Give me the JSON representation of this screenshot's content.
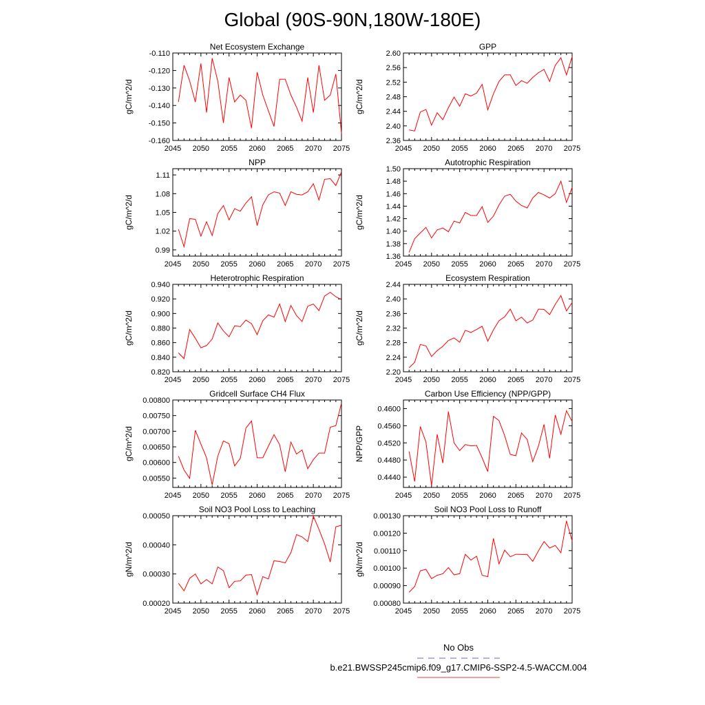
{
  "title": "Global (90S-90N,180W-180E)",
  "legend": {
    "entries": [
      {
        "label": "No Obs",
        "color": "#6666cc",
        "dash": true
      },
      {
        "label": "b.e21.BWSSP245cmip6.f09_g17.CMIP6-SSP2-4.5-WACCM.004",
        "color": "#e04040",
        "dash": false
      }
    ]
  },
  "colors": {
    "series": "#ff0000",
    "axes": "#000000"
  },
  "chart_data": [
    {
      "type": "line",
      "title": "Net Ecosystem Exchange",
      "ylabel": "gC/m^2/d",
      "xlim": [
        2045,
        2075
      ],
      "ylim": [
        -0.16,
        -0.11
      ],
      "xticks": [
        2045,
        2050,
        2055,
        2060,
        2065,
        2070,
        2075
      ],
      "yticks": [
        "-0.160",
        "-0.150",
        "-0.140",
        "-0.130",
        "-0.120",
        "-0.110"
      ],
      "x": [
        2046,
        2047,
        2048,
        2049,
        2050,
        2051,
        2052,
        2053,
        2054,
        2055,
        2056,
        2057,
        2058,
        2059,
        2060,
        2061,
        2062,
        2063,
        2064,
        2065,
        2066,
        2067,
        2068,
        2069,
        2070,
        2071,
        2072,
        2073,
        2074,
        2075
      ],
      "values": [
        -0.138,
        -0.117,
        -0.126,
        -0.138,
        -0.116,
        -0.144,
        -0.113,
        -0.126,
        -0.15,
        -0.124,
        -0.138,
        -0.134,
        -0.137,
        -0.153,
        -0.121,
        -0.134,
        -0.143,
        -0.152,
        -0.125,
        -0.125,
        -0.134,
        -0.141,
        -0.149,
        -0.124,
        -0.144,
        -0.117,
        -0.137,
        -0.134,
        -0.122,
        -0.156
      ]
    },
    {
      "type": "line",
      "title": "GPP",
      "ylabel": "gC/m^2/d",
      "xlim": [
        2045,
        2075
      ],
      "ylim": [
        2.36,
        2.6
      ],
      "xticks": [
        2045,
        2050,
        2055,
        2060,
        2065,
        2070,
        2075
      ],
      "yticks": [
        "2.36",
        "2.40",
        "2.44",
        "2.48",
        "2.52",
        "2.56",
        "2.60"
      ],
      "x": [
        2046,
        2047,
        2048,
        2049,
        2050,
        2051,
        2052,
        2053,
        2054,
        2055,
        2056,
        2057,
        2058,
        2059,
        2060,
        2061,
        2062,
        2063,
        2064,
        2065,
        2066,
        2067,
        2068,
        2069,
        2070,
        2071,
        2072,
        2073,
        2074,
        2075
      ],
      "values": [
        2.389,
        2.386,
        2.438,
        2.445,
        2.402,
        2.436,
        2.417,
        2.45,
        2.479,
        2.454,
        2.488,
        2.482,
        2.49,
        2.514,
        2.444,
        2.488,
        2.522,
        2.54,
        2.54,
        2.511,
        2.524,
        2.517,
        2.533,
        2.546,
        2.555,
        2.522,
        2.566,
        2.587,
        2.54,
        2.59
      ]
    },
    {
      "type": "line",
      "title": "NPP",
      "ylabel": "gC/m^2/d",
      "xlim": [
        2045,
        2075
      ],
      "ylim": [
        0.98,
        1.12
      ],
      "xticks": [
        2045,
        2050,
        2055,
        2060,
        2065,
        2070,
        2075
      ],
      "yticks": [
        "0.99",
        "1.02",
        "1.05",
        "1.08",
        "1.11"
      ],
      "x": [
        2046,
        2047,
        2048,
        2049,
        2050,
        2051,
        2052,
        2053,
        2054,
        2055,
        2056,
        2057,
        2058,
        2059,
        2060,
        2061,
        2062,
        2063,
        2064,
        2065,
        2066,
        2067,
        2068,
        2069,
        2070,
        2071,
        2072,
        2073,
        2074,
        2075
      ],
      "values": [
        1.023,
        0.995,
        1.04,
        1.039,
        1.012,
        1.035,
        1.013,
        1.048,
        1.061,
        1.038,
        1.056,
        1.052,
        1.065,
        1.075,
        1.029,
        1.062,
        1.078,
        1.083,
        1.081,
        1.061,
        1.083,
        1.079,
        1.078,
        1.083,
        1.096,
        1.07,
        1.103,
        1.104,
        1.093,
        1.115
      ]
    },
    {
      "type": "line",
      "title": "Autotrophic Respiration",
      "ylabel": "gC/m^2/d",
      "xlim": [
        2045,
        2075
      ],
      "ylim": [
        1.36,
        1.5
      ],
      "xticks": [
        2045,
        2050,
        2055,
        2060,
        2065,
        2070,
        2075
      ],
      "yticks": [
        "1.36",
        "1.38",
        "1.40",
        "1.42",
        "1.44",
        "1.46",
        "1.48",
        "1.50"
      ],
      "x": [
        2046,
        2047,
        2048,
        2049,
        2050,
        2051,
        2052,
        2053,
        2054,
        2055,
        2056,
        2057,
        2058,
        2059,
        2060,
        2061,
        2062,
        2063,
        2064,
        2065,
        2066,
        2067,
        2068,
        2069,
        2070,
        2071,
        2072,
        2073,
        2074,
        2075
      ],
      "values": [
        1.366,
        1.388,
        1.397,
        1.406,
        1.389,
        1.402,
        1.405,
        1.399,
        1.416,
        1.413,
        1.43,
        1.425,
        1.425,
        1.439,
        1.414,
        1.424,
        1.442,
        1.456,
        1.459,
        1.448,
        1.441,
        1.437,
        1.453,
        1.462,
        1.458,
        1.453,
        1.46,
        1.48,
        1.446,
        1.47
      ]
    },
    {
      "type": "line",
      "title": "Heterotrophic Respiration",
      "ylabel": "gC/m^2/d",
      "xlim": [
        2045,
        2075
      ],
      "ylim": [
        0.82,
        0.94
      ],
      "xticks": [
        2045,
        2050,
        2055,
        2060,
        2065,
        2070,
        2075
      ],
      "yticks": [
        "0.820",
        "0.840",
        "0.860",
        "0.880",
        "0.900",
        "0.920",
        "0.940"
      ],
      "x": [
        2046,
        2047,
        2048,
        2049,
        2050,
        2051,
        2052,
        2053,
        2054,
        2055,
        2056,
        2057,
        2058,
        2059,
        2060,
        2061,
        2062,
        2063,
        2064,
        2065,
        2066,
        2067,
        2068,
        2069,
        2070,
        2071,
        2072,
        2073,
        2074,
        2075
      ],
      "values": [
        0.846,
        0.838,
        0.878,
        0.866,
        0.853,
        0.856,
        0.865,
        0.887,
        0.876,
        0.868,
        0.883,
        0.882,
        0.891,
        0.886,
        0.871,
        0.89,
        0.898,
        0.895,
        0.913,
        0.889,
        0.911,
        0.897,
        0.889,
        0.91,
        0.913,
        0.904,
        0.924,
        0.929,
        0.923,
        0.919
      ]
    },
    {
      "type": "line",
      "title": "Ecosystem Respiration",
      "ylabel": "gC/m^2/d",
      "xlim": [
        2045,
        2075
      ],
      "ylim": [
        2.2,
        2.44
      ],
      "xticks": [
        2045,
        2050,
        2055,
        2060,
        2065,
        2070,
        2075
      ],
      "yticks": [
        "2.20",
        "2.24",
        "2.28",
        "2.32",
        "2.36",
        "2.40",
        "2.44"
      ],
      "x": [
        2046,
        2047,
        2048,
        2049,
        2050,
        2051,
        2052,
        2053,
        2054,
        2055,
        2056,
        2057,
        2058,
        2059,
        2060,
        2061,
        2062,
        2063,
        2064,
        2065,
        2066,
        2067,
        2068,
        2069,
        2070,
        2071,
        2072,
        2073,
        2074,
        2075
      ],
      "values": [
        2.211,
        2.226,
        2.275,
        2.271,
        2.242,
        2.258,
        2.27,
        2.286,
        2.293,
        2.281,
        2.314,
        2.308,
        2.316,
        2.325,
        2.284,
        2.315,
        2.34,
        2.351,
        2.372,
        2.34,
        2.35,
        2.334,
        2.342,
        2.372,
        2.371,
        2.357,
        2.385,
        2.409,
        2.367,
        2.39
      ]
    },
    {
      "type": "line",
      "title": "Gridcell Surface CH4 Flux",
      "ylabel": "gC/m^2/d",
      "xlim": [
        2045,
        2075
      ],
      "ylim": [
        0.0052,
        0.008
      ],
      "xticks": [
        2045,
        2050,
        2055,
        2060,
        2065,
        2070,
        2075
      ],
      "yticks": [
        "0.00550",
        "0.00600",
        "0.00650",
        "0.00700",
        "0.00750",
        "0.00800"
      ],
      "x": [
        2046,
        2047,
        2048,
        2049,
        2050,
        2051,
        2052,
        2053,
        2054,
        2055,
        2056,
        2057,
        2058,
        2059,
        2060,
        2061,
        2062,
        2063,
        2064,
        2065,
        2066,
        2067,
        2068,
        2069,
        2070,
        2071,
        2072,
        2073,
        2074,
        2075
      ],
      "values": [
        0.0062,
        0.00576,
        0.00549,
        0.00703,
        0.00659,
        0.00615,
        0.00528,
        0.0062,
        0.00669,
        0.0066,
        0.00589,
        0.00613,
        0.0071,
        0.00733,
        0.00615,
        0.00615,
        0.00652,
        0.00689,
        0.00657,
        0.0057,
        0.00665,
        0.00627,
        0.0064,
        0.0058,
        0.00609,
        0.0063,
        0.0063,
        0.00713,
        0.00718,
        0.0079
      ]
    },
    {
      "type": "line",
      "title": "Carbon Use Efficiency (NPP/GPP)",
      "ylabel": "NPP/GPP",
      "xlim": [
        2045,
        2075
      ],
      "ylim": [
        0.4416,
        0.462
      ],
      "xticks": [
        2045,
        2050,
        2055,
        2060,
        2065,
        2070,
        2075
      ],
      "yticks": [
        "0.4440",
        "0.4480",
        "0.4520",
        "0.4560",
        "0.4600"
      ],
      "x": [
        2046,
        2047,
        2048,
        2049,
        2050,
        2051,
        2052,
        2053,
        2054,
        2055,
        2056,
        2057,
        2058,
        2059,
        2060,
        2061,
        2062,
        2063,
        2064,
        2065,
        2066,
        2067,
        2068,
        2069,
        2070,
        2071,
        2072,
        2073,
        2074,
        2075
      ],
      "values": [
        0.45,
        0.443,
        0.4558,
        0.4522,
        0.442,
        0.454,
        0.4473,
        0.4593,
        0.452,
        0.4502,
        0.4516,
        0.4513,
        0.4514,
        0.4485,
        0.4453,
        0.4582,
        0.4572,
        0.4537,
        0.4493,
        0.449,
        0.4543,
        0.4528,
        0.4476,
        0.4512,
        0.4563,
        0.4484,
        0.4585,
        0.454,
        0.4595,
        0.457
      ]
    },
    {
      "type": "line",
      "title": "Soil NO3 Pool Loss to Leaching",
      "ylabel": "gN/m^2/d",
      "xlim": [
        2045,
        2075
      ],
      "ylim": [
        0.0002,
        0.0005
      ],
      "xticks": [
        2045,
        2050,
        2055,
        2060,
        2065,
        2070,
        2075
      ],
      "yticks": [
        "0.00020",
        "0.00030",
        "0.00040",
        "0.00050"
      ],
      "x": [
        2046,
        2047,
        2048,
        2049,
        2050,
        2051,
        2052,
        2053,
        2054,
        2055,
        2056,
        2057,
        2058,
        2059,
        2060,
        2061,
        2062,
        2063,
        2064,
        2065,
        2066,
        2067,
        2068,
        2069,
        2070,
        2071,
        2072,
        2073,
        2074,
        2075
      ],
      "values": [
        0.000268,
        0.000242,
        0.000285,
        0.0003,
        0.000266,
        0.000281,
        0.000266,
        0.000324,
        0.000311,
        0.000253,
        0.000275,
        0.000276,
        0.000296,
        0.000298,
        0.000229,
        0.000291,
        0.000283,
        0.000345,
        0.000343,
        0.000338,
        0.000373,
        0.000435,
        0.000427,
        0.000411,
        0.000498,
        0.000453,
        0.000403,
        0.000341,
        0.000462,
        0.000467
      ]
    },
    {
      "type": "line",
      "title": "Soil NO3 Pool Loss to Runoff",
      "ylabel": "gN/m^2/d",
      "xlim": [
        2045,
        2075
      ],
      "ylim": [
        0.0008,
        0.0013
      ],
      "xticks": [
        2045,
        2050,
        2055,
        2060,
        2065,
        2070,
        2075
      ],
      "yticks": [
        "0.00080",
        "0.00090",
        "0.00100",
        "0.00110",
        "0.00120",
        "0.00130"
      ],
      "x": [
        2046,
        2047,
        2048,
        2049,
        2050,
        2051,
        2052,
        2053,
        2054,
        2055,
        2056,
        2057,
        2058,
        2059,
        2060,
        2061,
        2062,
        2063,
        2064,
        2065,
        2066,
        2067,
        2068,
        2069,
        2070,
        2071,
        2072,
        2073,
        2074,
        2075
      ],
      "values": [
        0.000862,
        0.000895,
        0.000985,
        0.000993,
        0.00094,
        0.000959,
        0.000968,
        0.001003,
        0.000962,
        0.000968,
        0.001079,
        0.001046,
        0.001068,
        0.000959,
        0.000951,
        0.00117,
        0.001025,
        0.001103,
        0.001065,
        0.001079,
        0.001078,
        0.001078,
        0.001039,
        0.001098,
        0.001152,
        0.001115,
        0.00113,
        0.001088,
        0.00127,
        0.001155
      ]
    }
  ]
}
